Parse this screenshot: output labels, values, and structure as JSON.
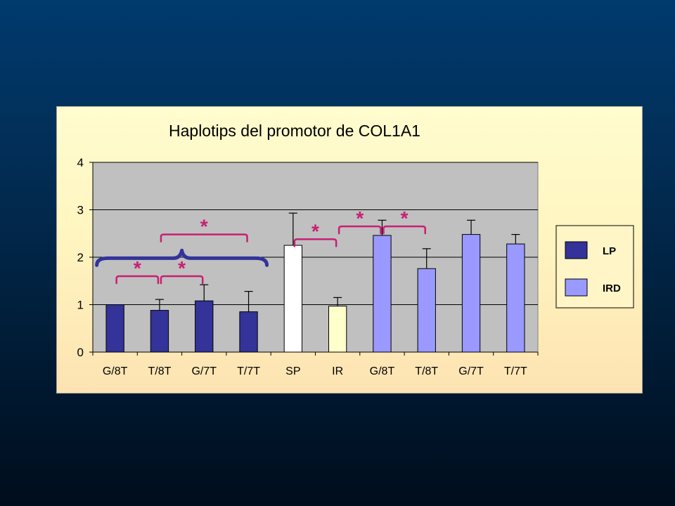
{
  "chart_data": {
    "type": "bar",
    "title": "Haplotips del promotor de COL1A1",
    "xlabel": "",
    "ylabel": "",
    "ylim": [
      0,
      4
    ],
    "yticks": [
      "0",
      "1",
      "2",
      "3",
      "4"
    ],
    "grid": true,
    "legend_position": "right",
    "categories": [
      "G/8T",
      "T/8T",
      "G/7T",
      "T/7T",
      "SP",
      "IR",
      "G/8T",
      "T/8T",
      "G/7T",
      "T/7T"
    ],
    "values": [
      1.0,
      0.88,
      1.08,
      0.85,
      2.25,
      0.97,
      2.46,
      1.76,
      2.48,
      2.28
    ],
    "errors": [
      0.0,
      0.23,
      0.34,
      0.43,
      0.68,
      0.18,
      0.32,
      0.42,
      0.3,
      0.2
    ],
    "bar_colors": [
      "#333399",
      "#333399",
      "#333399",
      "#333399",
      "#ffffff",
      "#ffffcc",
      "#9999ff",
      "#9999ff",
      "#9999ff",
      "#9999ff"
    ],
    "legend": [
      {
        "label": "LP",
        "color": "#333399"
      },
      {
        "label": "IRD",
        "color": "#9999ff"
      }
    ],
    "annotations": [
      {
        "text": "*",
        "type": "bracket",
        "from": 0,
        "to": 1,
        "level": 1.6
      },
      {
        "text": "*",
        "type": "bracket",
        "from": 1,
        "to": 2,
        "level": 1.6
      },
      {
        "text": "*",
        "type": "bracket",
        "from": 1,
        "to": 3,
        "level": 2.48
      },
      {
        "text": "*",
        "type": "bracket",
        "from": 4,
        "to": 5,
        "level": 2.38
      },
      {
        "text": "*",
        "type": "bracket",
        "from": 5,
        "to": 6,
        "level": 2.65
      },
      {
        "text": "*",
        "type": "bracket",
        "from": 6,
        "to": 7,
        "level": 2.65
      },
      {
        "text": "",
        "type": "brace",
        "from": 0,
        "to": 3,
        "level": 1.98
      }
    ]
  },
  "colors": {
    "plot_background": "#c0c0c0",
    "annotation": "#c71f73",
    "brace": "#33339a"
  }
}
